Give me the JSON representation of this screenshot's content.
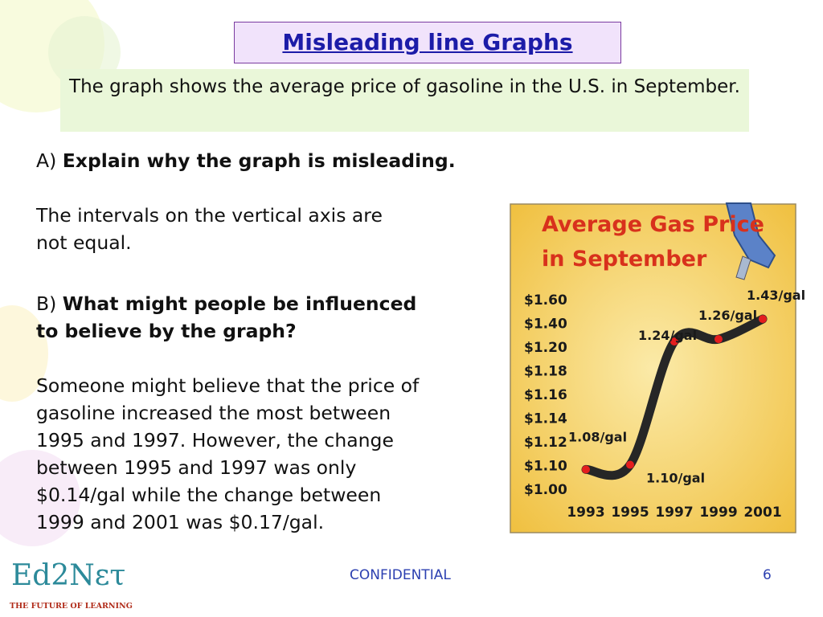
{
  "title": "Misleading line Graphs",
  "subtitle": "The graph shows the average price of gasoline in the U.S. in September.",
  "question_a": {
    "label": "A)",
    "text": "Explain why the graph is misleading."
  },
  "answer_a": [
    "The intervals on the vertical axis are",
    "not equal."
  ],
  "question_b": {
    "label": "B)",
    "lines": [
      "What might people be influenced",
      "to believe by the graph?"
    ]
  },
  "answer_b": [
    "Someone might believe that the price of",
    "gasoline increased the most between",
    "1995 and 1997. However, the change",
    "between 1995 and 1997 was only",
    "$0.14/gal while the change between",
    "1999 and 2001 was $0.17/gal."
  ],
  "chart": {
    "type": "line",
    "title": [
      "Average Gas Price",
      "in September"
    ],
    "categories": [
      "1993",
      "1995",
      "1997",
      "1999",
      "2001"
    ],
    "values": [
      1.08,
      1.1,
      1.24,
      1.26,
      1.43
    ],
    "value_labels": [
      "1.08/gal",
      "1.10/gal",
      "1.24/gal",
      "1.26/gal",
      "1.43/gal"
    ],
    "ylim": [
      1.0,
      1.6
    ],
    "yticks": [
      {
        "value": 1.0,
        "label": "$1.00"
      },
      {
        "value": 1.1,
        "label": "$1.10"
      },
      {
        "value": 1.12,
        "label": "$1.12"
      },
      {
        "value": 1.14,
        "label": "$1.14"
      },
      {
        "value": 1.16,
        "label": "$1.16"
      },
      {
        "value": 1.18,
        "label": "$1.18"
      },
      {
        "value": 1.2,
        "label": "$1.20"
      },
      {
        "value": 1.4,
        "label": "$1.40"
      },
      {
        "value": 1.6,
        "label": "$1.60"
      }
    ],
    "color": "#262626",
    "marker_color": "#e41e1e"
  },
  "footer": {
    "label": "CONFIDENTIAL",
    "page": 6
  },
  "logo": {
    "name": "Ed2Nετ",
    "tagline": "THE FUTURE OF LEARNING"
  }
}
